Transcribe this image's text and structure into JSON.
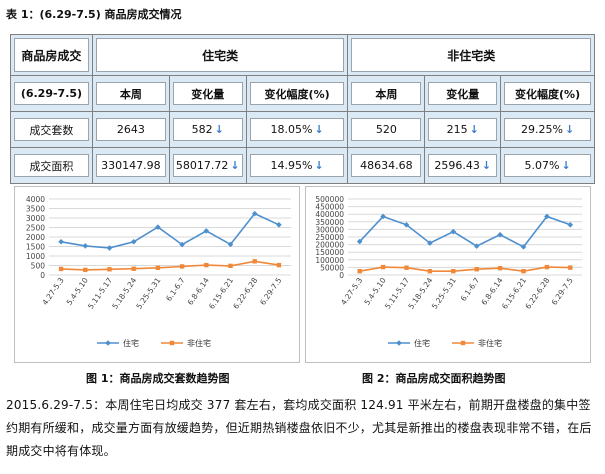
{
  "table": {
    "title": "表 1：(6.29-7.5) 商品房成交情况",
    "header_main": "商品房成交",
    "group_residential": "住宅类",
    "group_nonresidential": "非住宅类",
    "period": "(6.29-7.5)",
    "col_this_week": "本周",
    "col_change": "变化量",
    "col_change_pct": "变化幅度(%)",
    "rows": [
      {
        "label": "成交套数",
        "res_week": "2643",
        "res_change": "582",
        "res_pct": "18.05%",
        "non_week": "520",
        "non_change": "215",
        "non_pct": "29.25%"
      },
      {
        "label": "成交面积",
        "res_week": "330147.98",
        "res_change": "58017.72",
        "res_pct": "14.95%",
        "non_week": "48634.68",
        "non_change": "2596.43",
        "non_pct": "5.07%"
      }
    ],
    "down_arrow": "↓"
  },
  "chart1": {
    "caption": "图 1：商品房成交套数趋势图",
    "legend_a": "住宅",
    "legend_b": "非住宅"
  },
  "chart2": {
    "caption": "图 2：商品房成交面积趋势图",
    "legend_a": "住宅",
    "legend_b": "非住宅"
  },
  "chart_data": [
    {
      "type": "line",
      "categories": [
        "4.27-5.3",
        "5.4-5.10",
        "5.11-5.17",
        "5.18-5.24",
        "5.25-5.31",
        "6.1-6.7",
        "6.8-6.14",
        "6.15-6.21",
        "6.22-6.28",
        "6.29-7.5"
      ],
      "ylim": [
        0,
        4000
      ],
      "yticks": [
        0,
        500,
        1000,
        1500,
        2000,
        2500,
        3000,
        3500,
        4000
      ],
      "grid": true,
      "legend": "bottom",
      "series": [
        {
          "name": "住宅",
          "color": "#4e8fce",
          "values": [
            1750,
            1530,
            1420,
            1750,
            2520,
            1600,
            2320,
            1610,
            3230,
            2643
          ]
        },
        {
          "name": "非住宅",
          "color": "#f0883a",
          "values": [
            320,
            270,
            300,
            330,
            380,
            450,
            520,
            480,
            720,
            520
          ]
        }
      ]
    },
    {
      "type": "line",
      "categories": [
        "4.27-5.3",
        "5.4-5.10",
        "5.11-5.17",
        "5.18-5.24",
        "5.25-5.31",
        "6.1-6.7",
        "6.8-6.14",
        "6.15-6.21",
        "6.22-6.28",
        "6.29-7.5"
      ],
      "ylim": [
        0,
        500000
      ],
      "yticks": [
        0,
        50000,
        100000,
        150000,
        200000,
        250000,
        300000,
        350000,
        400000,
        450000,
        500000
      ],
      "grid": true,
      "legend": "bottom",
      "series": [
        {
          "name": "住宅",
          "color": "#4e8fce",
          "values": [
            220000,
            385000,
            330000,
            210000,
            285000,
            190000,
            265000,
            185000,
            385000,
            330148
          ]
        },
        {
          "name": "非住宅",
          "color": "#f0883a",
          "values": [
            25000,
            52000,
            48000,
            25000,
            25000,
            38000,
            45000,
            25000,
            52000,
            48635
          ]
        }
      ]
    }
  ],
  "paragraph": "2015.6.29-7.5：本周住宅日均成交 377 套左右，套均成交面积 124.91 平米左右，前期开盘楼盘的集中签约期有所缓和，成交量方面有放缓趋势，但近期热销楼盘依旧不少，尤其是新推出的楼盘表现非常不错，在后期成交中将有体现。"
}
